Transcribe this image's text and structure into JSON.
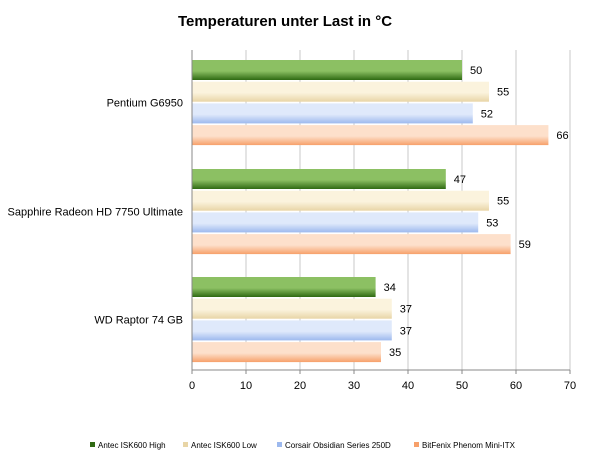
{
  "chart_data": {
    "type": "bar",
    "orientation": "horizontal",
    "title": "Temperaturen  unter Last in °C",
    "xlabel": "",
    "ylabel": "",
    "xlim": [
      0,
      70
    ],
    "xticks": [
      0,
      10,
      20,
      30,
      40,
      50,
      60,
      70
    ],
    "grid": true,
    "legend_position": "bottom",
    "categories": [
      "Pentium G6950",
      "Sapphire Radeon HD 7750 Ultimate",
      "WD Raptor 74 GB"
    ],
    "series": [
      {
        "name": "Antec  ISK600 High",
        "values": [
          50,
          47,
          34
        ],
        "color_light": "#8cc063",
        "color_dark": "#2f6a13"
      },
      {
        "name": "Antec  ISK600 Low",
        "values": [
          55,
          55,
          37
        ],
        "color_light": "#fbf3dd",
        "color_dark": "#e8d5a6"
      },
      {
        "name": "Corsair Obsidian Series 250D",
        "values": [
          52,
          53,
          37
        ],
        "color_light": "#dfe9fb",
        "color_dark": "#9db9ee"
      },
      {
        "name": "BitFenix Phenom  Mini-ITX",
        "values": [
          66,
          59,
          35
        ],
        "color_light": "#fde0cb",
        "color_dark": "#f7a06a"
      }
    ]
  }
}
